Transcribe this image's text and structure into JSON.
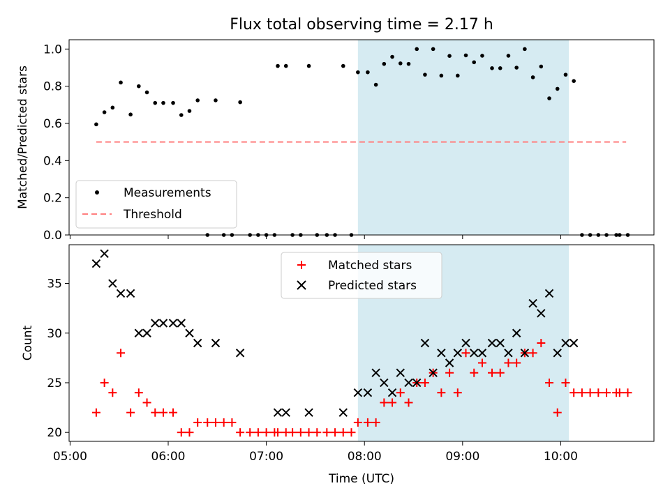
{
  "chart_data": [
    {
      "type": "scatter",
      "title": "Flux total observing time = 2.17 h",
      "xlabel": "",
      "ylabel": "Matched/Predicted stars",
      "ylim": [
        0.0,
        1.05
      ],
      "xlim_hours": [
        4.99,
        10.95
      ],
      "yticks": [
        0.0,
        0.2,
        0.4,
        0.6,
        0.8,
        1.0
      ],
      "ytick_labels": [
        "0.0",
        "0.2",
        "0.4",
        "0.6",
        "0.8",
        "1.0"
      ],
      "grid": false,
      "legend_position": "lower-left",
      "shaded_region": {
        "x0": "07:56",
        "x1": "10:05",
        "color": "#add8e6"
      },
      "threshold": {
        "name": "Threshold",
        "value": 0.5,
        "x0": "05:16",
        "x1": "10:40",
        "color": "#ff7f7f"
      },
      "series": [
        {
          "name": "Measurements",
          "color": "#000000",
          "marker": "dot",
          "points": [
            [
              "05:16",
              0.595
            ],
            [
              "05:21",
              0.66
            ],
            [
              "05:26",
              0.685
            ],
            [
              "05:31",
              0.82
            ],
            [
              "05:37",
              0.648
            ],
            [
              "05:42",
              0.8
            ],
            [
              "05:47",
              0.767
            ],
            [
              "05:52",
              0.71
            ],
            [
              "05:57",
              0.71
            ],
            [
              "06:03",
              0.71
            ],
            [
              "06:08",
              0.645
            ],
            [
              "06:13",
              0.667
            ],
            [
              "06:18",
              0.724
            ],
            [
              "06:24",
              0.0
            ],
            [
              "06:29",
              0.724
            ],
            [
              "06:34",
              0.0
            ],
            [
              "06:39",
              0.0
            ],
            [
              "06:44",
              0.714
            ],
            [
              "06:50",
              0.0
            ],
            [
              "06:55",
              0.0
            ],
            [
              "07:00",
              0.0
            ],
            [
              "07:05",
              0.0
            ],
            [
              "07:07",
              0.909
            ],
            [
              "07:12",
              0.909
            ],
            [
              "07:16",
              0.0
            ],
            [
              "07:21",
              0.0
            ],
            [
              "07:26",
              0.909
            ],
            [
              "07:31",
              0.0
            ],
            [
              "07:37",
              0.0
            ],
            [
              "07:42",
              0.0
            ],
            [
              "07:47",
              0.909
            ],
            [
              "07:52",
              0.0
            ],
            [
              "07:56",
              0.875
            ],
            [
              "08:02",
              0.875
            ],
            [
              "08:07",
              0.808
            ],
            [
              "08:12",
              0.92
            ],
            [
              "08:17",
              0.958
            ],
            [
              "08:22",
              0.923
            ],
            [
              "08:27",
              0.92
            ],
            [
              "08:32",
              1.0
            ],
            [
              "08:37",
              0.862
            ],
            [
              "08:42",
              1.0
            ],
            [
              "08:47",
              0.857
            ],
            [
              "08:52",
              0.963
            ],
            [
              "08:57",
              0.857
            ],
            [
              "09:02",
              0.966
            ],
            [
              "09:07",
              0.929
            ],
            [
              "09:12",
              0.964
            ],
            [
              "09:18",
              0.897
            ],
            [
              "09:23",
              0.897
            ],
            [
              "09:28",
              0.964
            ],
            [
              "09:33",
              0.9
            ],
            [
              "09:38",
              1.0
            ],
            [
              "09:43",
              0.848
            ],
            [
              "09:48",
              0.906
            ],
            [
              "09:53",
              0.735
            ],
            [
              "09:58",
              0.786
            ],
            [
              "10:03",
              0.862
            ],
            [
              "10:08",
              0.828
            ],
            [
              "10:13",
              0.0
            ],
            [
              "10:18",
              0.0
            ],
            [
              "10:23",
              0.0
            ],
            [
              "10:28",
              0.0
            ],
            [
              "10:34",
              0.0
            ],
            [
              "10:36",
              0.0
            ],
            [
              "10:41",
              0.0
            ]
          ]
        }
      ]
    },
    {
      "type": "scatter",
      "title": "",
      "xlabel": "Time (UTC)",
      "ylabel": "Count",
      "ylim": [
        19.1,
        38.9
      ],
      "xlim_hours": [
        4.99,
        10.95
      ],
      "yticks": [
        20,
        25,
        30,
        35
      ],
      "ytick_labels": [
        "20",
        "25",
        "30",
        "35"
      ],
      "xticks_hours": [
        5,
        6,
        7,
        8,
        9,
        10
      ],
      "xtick_labels": [
        "05:00",
        "06:00",
        "07:00",
        "08:00",
        "09:00",
        "10:00"
      ],
      "grid": false,
      "legend_position": "top-center",
      "shaded_region": {
        "x0": "07:56",
        "x1": "10:05",
        "color": "#add8e6"
      },
      "series": [
        {
          "name": "Matched stars",
          "color": "#ff0000",
          "marker": "plus",
          "points": [
            [
              "05:16",
              22
            ],
            [
              "05:21",
              25
            ],
            [
              "05:26",
              24
            ],
            [
              "05:31",
              28
            ],
            [
              "05:37",
              22
            ],
            [
              "05:42",
              24
            ],
            [
              "05:47",
              23
            ],
            [
              "05:52",
              22
            ],
            [
              "05:57",
              22
            ],
            [
              "06:03",
              22
            ],
            [
              "06:08",
              20
            ],
            [
              "06:13",
              20
            ],
            [
              "06:18",
              21
            ],
            [
              "06:24",
              21
            ],
            [
              "06:29",
              21
            ],
            [
              "06:34",
              21
            ],
            [
              "06:39",
              21
            ],
            [
              "06:44",
              20
            ],
            [
              "06:50",
              20
            ],
            [
              "06:55",
              20
            ],
            [
              "07:00",
              20
            ],
            [
              "07:05",
              20
            ],
            [
              "07:07",
              20
            ],
            [
              "07:12",
              20
            ],
            [
              "07:16",
              20
            ],
            [
              "07:21",
              20
            ],
            [
              "07:26",
              20
            ],
            [
              "07:31",
              20
            ],
            [
              "07:37",
              20
            ],
            [
              "07:42",
              20
            ],
            [
              "07:47",
              20
            ],
            [
              "07:52",
              20
            ],
            [
              "07:56",
              21
            ],
            [
              "08:02",
              21
            ],
            [
              "08:07",
              21
            ],
            [
              "08:12",
              23
            ],
            [
              "08:17",
              23
            ],
            [
              "08:22",
              24
            ],
            [
              "08:27",
              23
            ],
            [
              "08:32",
              25
            ],
            [
              "08:37",
              25
            ],
            [
              "08:42",
              26
            ],
            [
              "08:47",
              24
            ],
            [
              "08:52",
              26
            ],
            [
              "08:57",
              24
            ],
            [
              "09:02",
              28
            ],
            [
              "09:07",
              26
            ],
            [
              "09:12",
              27
            ],
            [
              "09:18",
              26
            ],
            [
              "09:23",
              26
            ],
            [
              "09:28",
              27
            ],
            [
              "09:33",
              27
            ],
            [
              "09:38",
              28
            ],
            [
              "09:43",
              28
            ],
            [
              "09:48",
              29
            ],
            [
              "09:53",
              25
            ],
            [
              "09:58",
              22
            ],
            [
              "10:03",
              25
            ],
            [
              "10:08",
              24
            ],
            [
              "10:13",
              24
            ],
            [
              "10:18",
              24
            ],
            [
              "10:23",
              24
            ],
            [
              "10:28",
              24
            ],
            [
              "10:34",
              24
            ],
            [
              "10:36",
              24
            ],
            [
              "10:41",
              24
            ]
          ]
        },
        {
          "name": "Predicted stars",
          "color": "#000000",
          "marker": "x",
          "points": [
            [
              "05:16",
              37
            ],
            [
              "05:21",
              38
            ],
            [
              "05:26",
              35
            ],
            [
              "05:31",
              34
            ],
            [
              "05:37",
              34
            ],
            [
              "05:42",
              30
            ],
            [
              "05:47",
              30
            ],
            [
              "05:52",
              31
            ],
            [
              "05:57",
              31
            ],
            [
              "06:03",
              31
            ],
            [
              "06:08",
              31
            ],
            [
              "06:13",
              30
            ],
            [
              "06:18",
              29
            ],
            [
              "06:29",
              29
            ],
            [
              "06:44",
              28
            ],
            [
              "07:07",
              22
            ],
            [
              "07:12",
              22
            ],
            [
              "07:26",
              22
            ],
            [
              "07:47",
              22
            ],
            [
              "07:56",
              24
            ],
            [
              "08:02",
              24
            ],
            [
              "08:07",
              26
            ],
            [
              "08:12",
              25
            ],
            [
              "08:17",
              24
            ],
            [
              "08:22",
              26
            ],
            [
              "08:27",
              25
            ],
            [
              "08:32",
              25
            ],
            [
              "08:37",
              29
            ],
            [
              "08:42",
              26
            ],
            [
              "08:47",
              28
            ],
            [
              "08:52",
              27
            ],
            [
              "08:57",
              28
            ],
            [
              "09:02",
              29
            ],
            [
              "09:07",
              28
            ],
            [
              "09:12",
              28
            ],
            [
              "09:18",
              29
            ],
            [
              "09:23",
              29
            ],
            [
              "09:28",
              28
            ],
            [
              "09:33",
              30
            ],
            [
              "09:38",
              28
            ],
            [
              "09:43",
              33
            ],
            [
              "09:48",
              32
            ],
            [
              "09:53",
              34
            ],
            [
              "09:58",
              28
            ],
            [
              "10:03",
              29
            ],
            [
              "10:08",
              29
            ]
          ]
        }
      ]
    }
  ]
}
